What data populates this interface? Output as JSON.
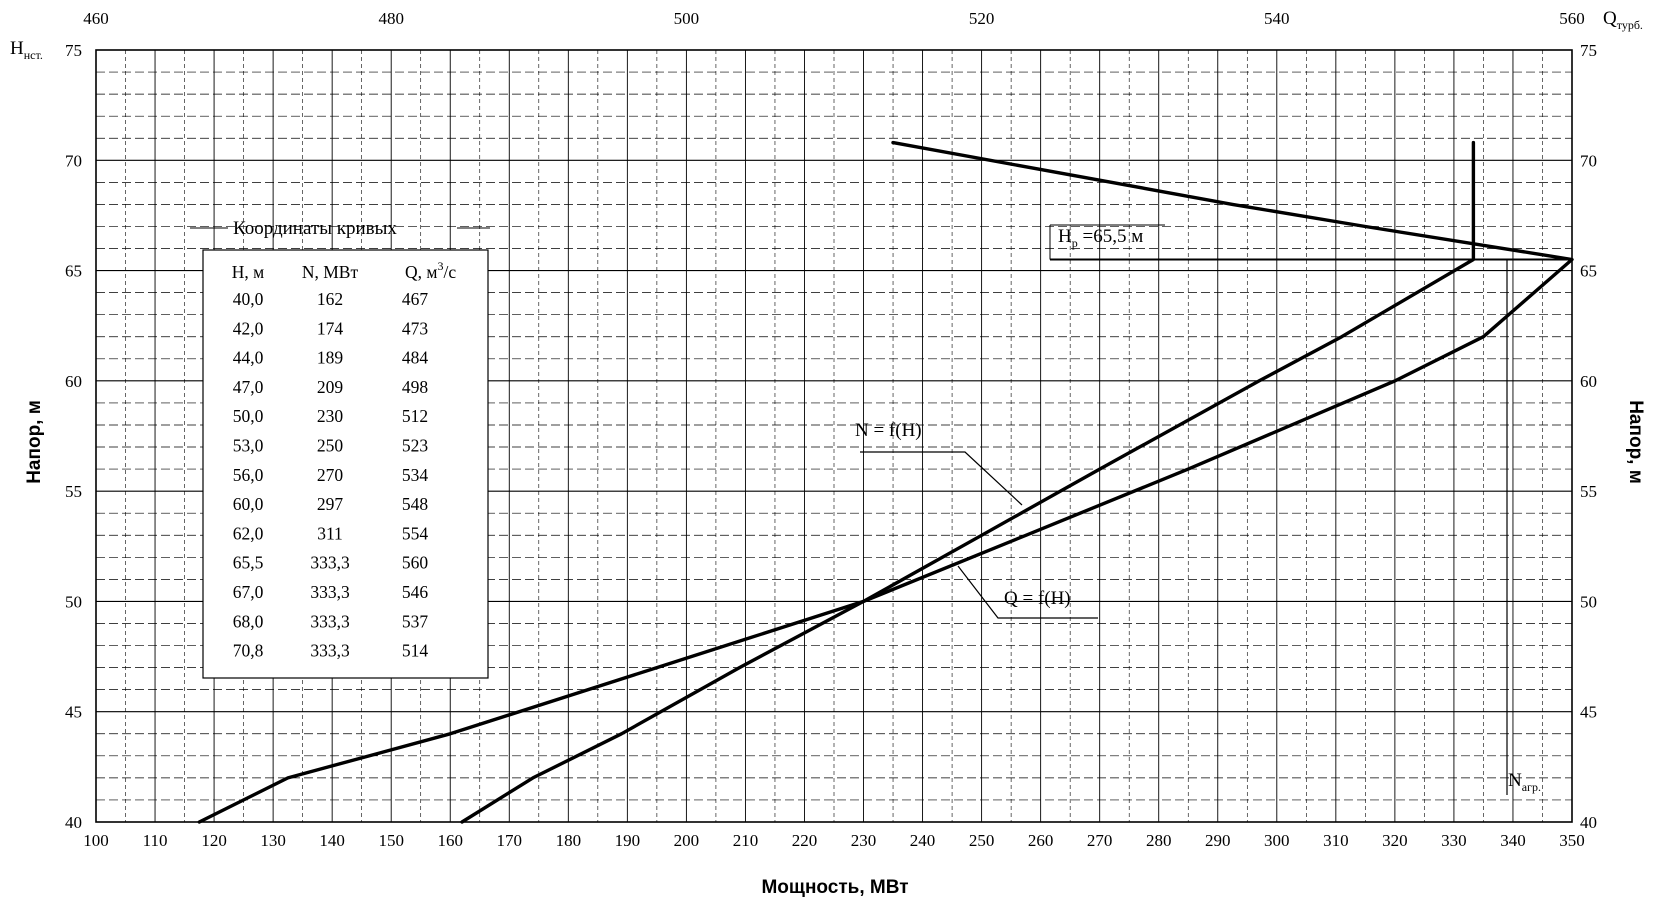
{
  "chart_data": {
    "type": "line",
    "x_bottom": {
      "label": "Мощность, МВт",
      "min": 100,
      "max": 350,
      "ticks": [
        100,
        110,
        120,
        130,
        140,
        150,
        160,
        170,
        180,
        190,
        200,
        210,
        220,
        230,
        240,
        250,
        260,
        270,
        280,
        290,
        300,
        310,
        320,
        330,
        340,
        350
      ]
    },
    "x_top": {
      "label_main": "Q",
      "label_sub": "турб.",
      "min": 460,
      "max": 560,
      "ticks": [
        460,
        480,
        500,
        520,
        540,
        560
      ]
    },
    "y_left": {
      "label": "Напор, м",
      "corner_main": "H",
      "corner_sub": "нст.",
      "min": 40,
      "max": 75,
      "ticks": [
        40,
        45,
        50,
        55,
        60,
        65,
        70,
        75
      ]
    },
    "y_right": {
      "label": "Напор, м",
      "min": 40,
      "max": 75,
      "ticks": [
        40,
        45,
        50,
        55,
        60,
        65,
        70,
        75
      ]
    },
    "grid": true,
    "series": [
      {
        "name": "N = f(H)",
        "axis": "bottom",
        "points": [
          [
            162,
            40.0
          ],
          [
            174,
            42.0
          ],
          [
            189,
            44.0
          ],
          [
            209,
            47.0
          ],
          [
            230,
            50.0
          ],
          [
            250,
            53.0
          ],
          [
            270,
            56.0
          ],
          [
            297,
            60.0
          ],
          [
            311,
            62.0
          ],
          [
            333.3,
            65.5
          ],
          [
            333.3,
            67.0
          ],
          [
            333.3,
            68.0
          ],
          [
            333.3,
            70.8
          ]
        ]
      },
      {
        "name": "Q = f(H)",
        "axis": "top",
        "points": [
          [
            467,
            40.0
          ],
          [
            473,
            42.0
          ],
          [
            484,
            44.0
          ],
          [
            498,
            47.0
          ],
          [
            512,
            50.0
          ],
          [
            523,
            53.0
          ],
          [
            534,
            56.0
          ],
          [
            548,
            60.0
          ],
          [
            554,
            62.0
          ],
          [
            560,
            65.5
          ],
          [
            546,
            67.0
          ],
          [
            537,
            68.0
          ],
          [
            514,
            70.8
          ]
        ]
      }
    ],
    "design_head": {
      "value": 65.5,
      "label_main": "H",
      "label_sub": "p",
      "label_rest": " =65,5 м"
    },
    "n_agr": {
      "value": 333.3,
      "label_main": "N",
      "label_sub": "агр."
    },
    "label_n": "N = f(H)",
    "label_q": "Q = f(H)",
    "table": {
      "title": "Координаты кривых",
      "headers": [
        "H, м",
        "N, МВт",
        "Q, м",
        "3",
        "/с"
      ],
      "rows": [
        [
          "40,0",
          "162",
          "467"
        ],
        [
          "42,0",
          "174",
          "473"
        ],
        [
          "44,0",
          "189",
          "484"
        ],
        [
          "47,0",
          "209",
          "498"
        ],
        [
          "50,0",
          "230",
          "512"
        ],
        [
          "53,0",
          "250",
          "523"
        ],
        [
          "56,0",
          "270",
          "534"
        ],
        [
          "60,0",
          "297",
          "548"
        ],
        [
          "62,0",
          "311",
          "554"
        ],
        [
          "65,5",
          "333,3",
          "560"
        ],
        [
          "67,0",
          "333,3",
          "546"
        ],
        [
          "68,0",
          "333,3",
          "537"
        ],
        [
          "70,8",
          "333,3",
          "514"
        ]
      ]
    }
  }
}
